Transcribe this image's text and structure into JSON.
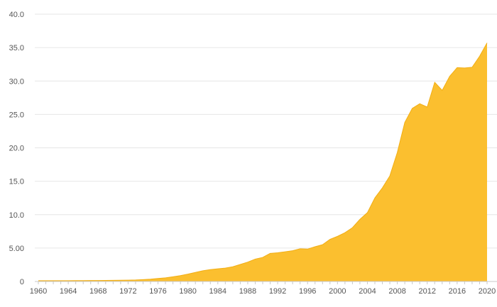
{
  "chart_data": {
    "type": "area",
    "title": "",
    "xlabel": "",
    "ylabel": "",
    "x": [
      1960,
      1961,
      1962,
      1963,
      1964,
      1965,
      1966,
      1967,
      1968,
      1969,
      1970,
      1971,
      1972,
      1973,
      1974,
      1975,
      1976,
      1977,
      1978,
      1979,
      1980,
      1981,
      1982,
      1983,
      1984,
      1985,
      1986,
      1987,
      1988,
      1989,
      1990,
      1991,
      1992,
      1993,
      1994,
      1995,
      1996,
      1997,
      1998,
      1999,
      2000,
      2001,
      2002,
      2003,
      2004,
      2005,
      2006,
      2007,
      2008,
      2009,
      2010,
      2011,
      2012,
      2013,
      2014,
      2015,
      2016,
      2017,
      2018,
      2019,
      2020
    ],
    "series": [
      {
        "values": [
          0.12,
          0.12,
          0.12,
          0.12,
          0.12,
          0.13,
          0.13,
          0.14,
          0.15,
          0.16,
          0.17,
          0.18,
          0.2,
          0.22,
          0.28,
          0.35,
          0.45,
          0.55,
          0.7,
          0.88,
          1.1,
          1.35,
          1.6,
          1.78,
          1.9,
          2.0,
          2.2,
          2.55,
          2.9,
          3.35,
          3.6,
          4.2,
          4.3,
          4.45,
          4.6,
          4.9,
          4.85,
          5.2,
          5.5,
          6.3,
          6.75,
          7.3,
          8.05,
          9.3,
          10.3,
          12.5,
          14.0,
          15.8,
          19.3,
          23.8,
          25.9,
          26.6,
          26.1,
          29.8,
          28.6,
          30.7,
          32.0,
          31.95,
          32.05,
          33.7,
          35.7
        ]
      }
    ],
    "ylim": [
      0,
      40
    ],
    "yticks": [
      "0",
      "5.00",
      "10.0",
      "15.0",
      "20.0",
      "25.0",
      "30.0",
      "35.0",
      "40.0"
    ],
    "xticks": [
      "1960",
      "1964",
      "1968",
      "1972",
      "1976",
      "1980",
      "1984",
      "1988",
      "1992",
      "1996",
      "2000",
      "2004",
      "2008",
      "2012",
      "2016",
      "2020"
    ],
    "grid": true,
    "legend": "none",
    "colors": {
      "fill": "#fbbf2f",
      "stroke": "#f2ae14"
    }
  }
}
